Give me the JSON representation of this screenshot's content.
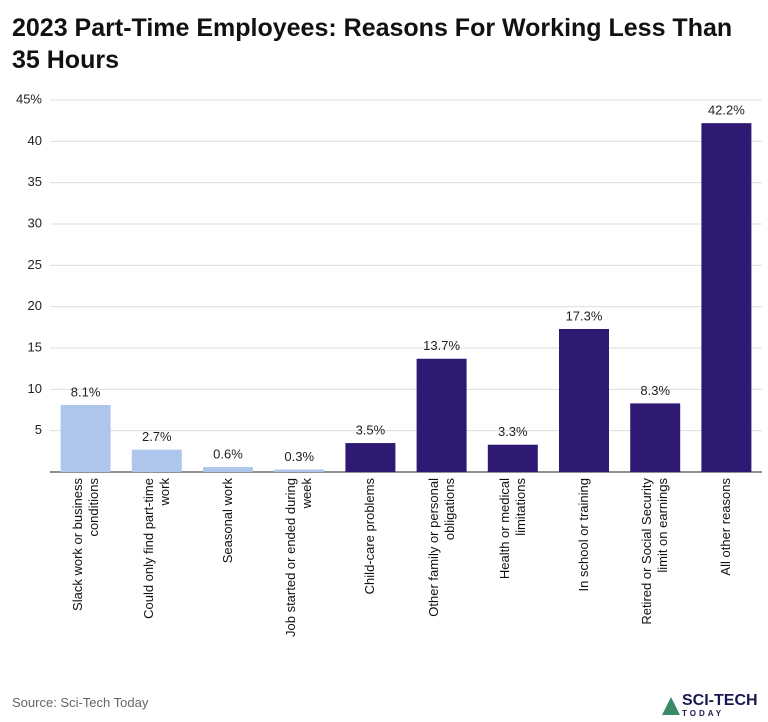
{
  "chart_data": {
    "type": "bar",
    "title": "2023 Part-Time Employees: Reasons For Working Less Than 35 Hours",
    "categories": [
      "Slack work or business conditions",
      "Could only find part-time work",
      "Seasonal work",
      "Job started or ended during week",
      "Child-care problems",
      "Other family or personal obligations",
      "Health or medical limitations",
      "In school or training",
      "Retired or Social Security limit on earnings",
      "All other reasons"
    ],
    "values": [
      8.1,
      2.7,
      0.6,
      0.3,
      3.5,
      13.7,
      3.3,
      17.3,
      8.3,
      42.2
    ],
    "value_labels": [
      "8.1%",
      "2.7%",
      "0.6%",
      "0.3%",
      "3.5%",
      "13.7%",
      "3.3%",
      "17.3%",
      "8.3%",
      "42.2%"
    ],
    "colors": [
      "#aec6ec",
      "#aec6ec",
      "#aec6ec",
      "#aec6ec",
      "#2e1a72",
      "#2e1a72",
      "#2e1a72",
      "#2e1a72",
      "#2e1a72",
      "#2e1a72"
    ],
    "ylim": [
      0,
      45
    ],
    "yticks": [
      5,
      10,
      15,
      20,
      25,
      30,
      35,
      40,
      {
        "value": 45,
        "label": "45%"
      }
    ],
    "grid": true,
    "source": "Source: Sci-Tech Today",
    "logo": {
      "main": "SCI-TECH",
      "sub": "TODAY"
    }
  }
}
